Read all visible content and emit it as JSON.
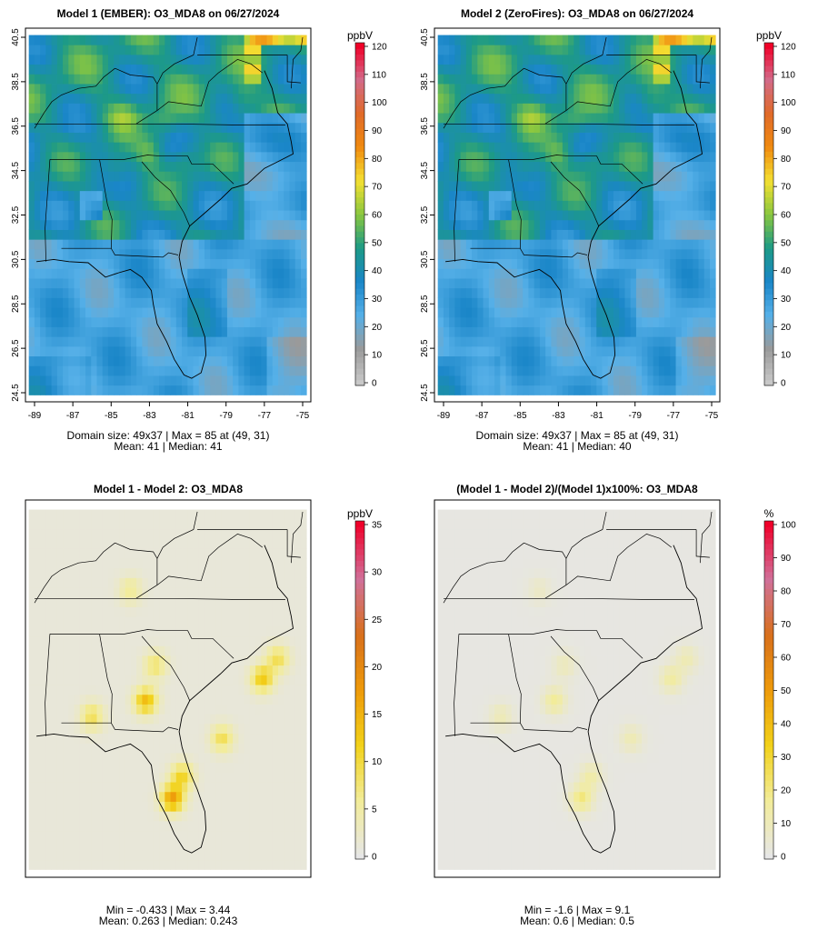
{
  "panels": [
    {
      "title": "Model 1 (EMBER): O3_MDA8 on 06/27/2024",
      "stats_line1": "Domain size: 49x37 | Max = 85 at (49, 31)",
      "stats_line2": "Mean: 41 |  Median: 41",
      "unit": "ppbV",
      "scale_ticks": [
        "0",
        "10",
        "20",
        "30",
        "40",
        "50",
        "60",
        "70",
        "80",
        "90",
        "100",
        "110",
        "120"
      ],
      "palette": "ozone"
    },
    {
      "title": "Model 2 (ZeroFires): O3_MDA8 on 06/27/2024",
      "stats_line1": "Domain size: 49x37 | Max = 85 at (49, 31)",
      "stats_line2": "Mean: 41 |  Median: 40",
      "unit": "ppbV",
      "scale_ticks": [
        "0",
        "10",
        "20",
        "30",
        "40",
        "50",
        "60",
        "70",
        "80",
        "90",
        "100",
        "110",
        "120"
      ],
      "palette": "ozone"
    },
    {
      "title": "Model 1 - Model 2: O3_MDA8",
      "stats_line1": "Min = -0.433 | Max = 3.44",
      "stats_line2": "Mean: 0.263 |  Median: 0.243",
      "unit": "ppbV",
      "scale_ticks": [
        "0",
        "5",
        "10",
        "15",
        "20",
        "25",
        "30",
        "35"
      ],
      "palette": "diff"
    },
    {
      "title": "(Model 1 - Model 2)/(Model 1)x100%: O3_MDA8",
      "stats_line1": "Min = -1.6 | Max = 9.1",
      "stats_line2": "Mean: 0.6 |  Median: 0.5",
      "unit": "%",
      "scale_ticks": [
        "0",
        "10",
        "20",
        "30",
        "40",
        "50",
        "60",
        "70",
        "80",
        "90",
        "100"
      ],
      "palette": "diff"
    }
  ],
  "axes": {
    "lat_ticks": [
      "24.5",
      "26.5",
      "28.5",
      "30.5",
      "32.5",
      "34.5",
      "36.5",
      "38.5",
      "40.5"
    ],
    "lon_ticks": [
      "-89",
      "-87",
      "-85",
      "-83",
      "-81",
      "-79",
      "-77",
      "-75"
    ]
  },
  "chart_data": [
    {
      "type": "heatmap",
      "title": "Model 1 (EMBER): O3_MDA8 on 06/27/2024",
      "variable": "O3_MDA8",
      "units": "ppbV",
      "colorbar_range": [
        0,
        120
      ],
      "domain_size": "49x37",
      "max": 85,
      "max_at": [
        49,
        31
      ],
      "mean": 41,
      "median": 41,
      "lon_range": [
        -89,
        -75
      ],
      "lat_range": [
        24.5,
        40.5
      ]
    },
    {
      "type": "heatmap",
      "title": "Model 2 (ZeroFires): O3_MDA8 on 06/27/2024",
      "variable": "O3_MDA8",
      "units": "ppbV",
      "colorbar_range": [
        0,
        120
      ],
      "domain_size": "49x37",
      "max": 85,
      "max_at": [
        49,
        31
      ],
      "mean": 41,
      "median": 40,
      "lon_range": [
        -89,
        -75
      ],
      "lat_range": [
        24.5,
        40.5
      ]
    },
    {
      "type": "heatmap",
      "title": "Model 1 - Model 2: O3_MDA8",
      "units": "ppbV",
      "colorbar_range": [
        0,
        35
      ],
      "min": -0.433,
      "max": 3.44,
      "mean": 0.263,
      "median": 0.243
    },
    {
      "type": "heatmap",
      "title": "(Model 1 - Model 2)/(Model 1)x100%: O3_MDA8",
      "units": "%",
      "colorbar_range": [
        0,
        100
      ],
      "min": -1.6,
      "max": 9.1,
      "mean": 0.6,
      "median": 0.5
    }
  ],
  "colors": {
    "ozone_stops": [
      "#c8c8c8",
      "#9a9a9a",
      "#56b0e8",
      "#1a86c8",
      "#1d9a86",
      "#8ac73f",
      "#f4e032",
      "#f08a10",
      "#e06a2a",
      "#d26a8a",
      "#f00028"
    ],
    "diff_stops": [
      "#e6e6e6",
      "#f2ec9a",
      "#f2d21a",
      "#ee9a0a",
      "#d8701c",
      "#d0709a",
      "#f0002a"
    ]
  }
}
